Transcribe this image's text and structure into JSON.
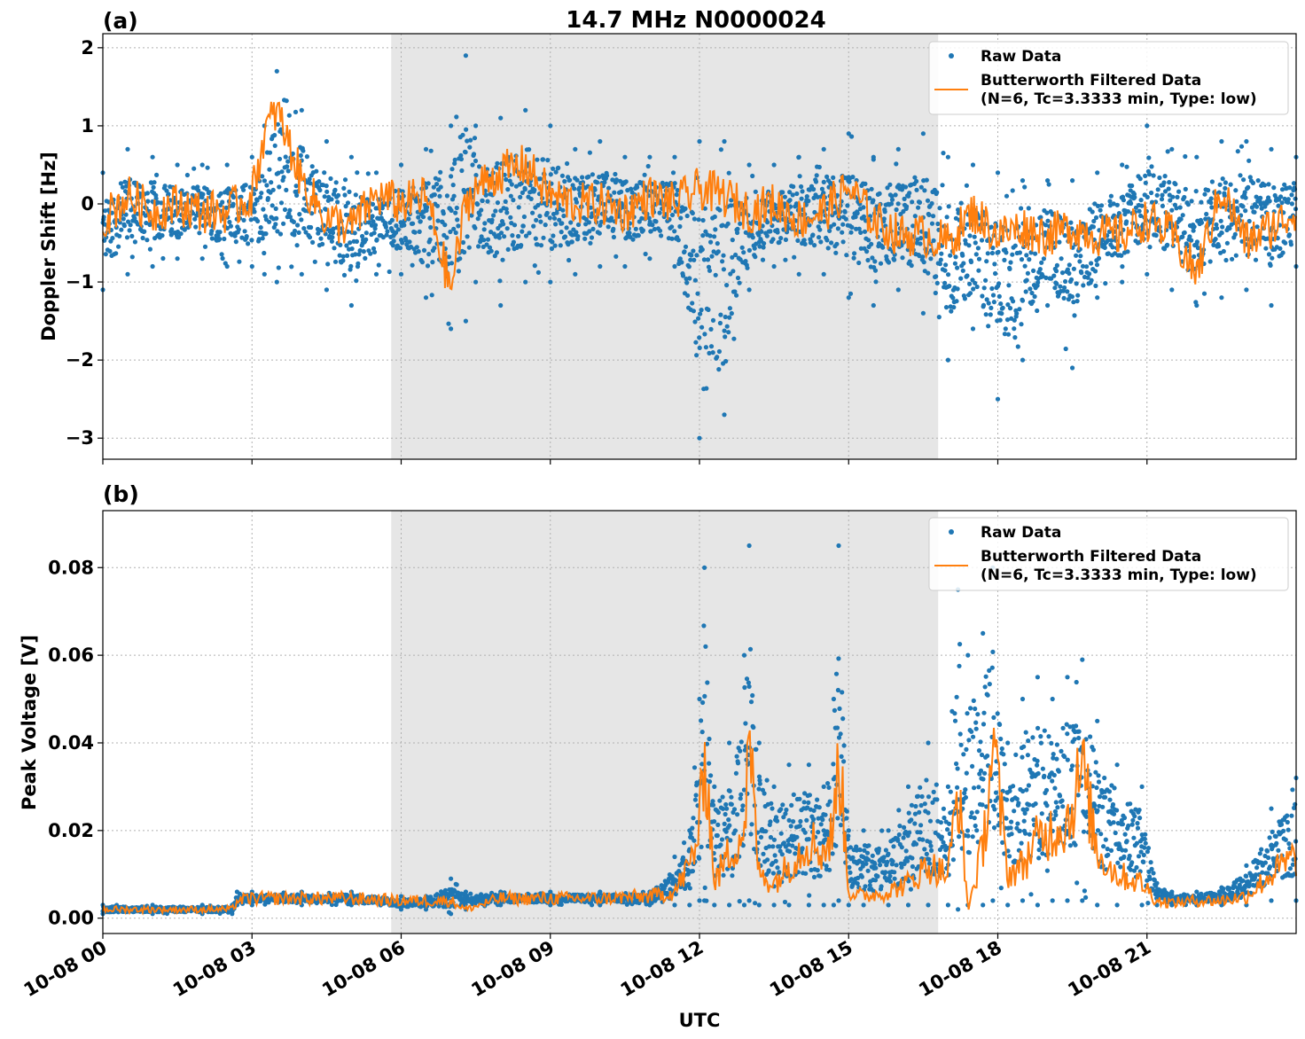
{
  "chart_data": [
    {
      "type": "scatter",
      "panel_label": "(a)",
      "title": "14.7 MHz N0000024",
      "xlabel": "",
      "ylabel": "Doppler Shift [Hz]",
      "xlim_hours": [
        0,
        24
      ],
      "ylim": [
        -3.27,
        2.18
      ],
      "yticks": [
        2,
        1,
        0,
        -1,
        -2,
        -3
      ],
      "ytick_labels": [
        "2",
        "1",
        "0",
        "−1",
        "−2",
        "−3"
      ],
      "grid": true,
      "legend_position": "top-right",
      "shaded_interval_hours": [
        5.8,
        16.8
      ],
      "series": [
        {
          "name": "Raw Data",
          "style": "points",
          "color": "#1f77b4",
          "x_hours": [
            0,
            0.5,
            1,
            1.5,
            2,
            2.5,
            3,
            3.25,
            3.5,
            4,
            4.5,
            5,
            5.5,
            6,
            6.5,
            7,
            7.3,
            7.5,
            8,
            8.5,
            9,
            9.5,
            10,
            10.5,
            11,
            11.5,
            12,
            12.5,
            13,
            13.5,
            14,
            14.5,
            15,
            15.5,
            16,
            16.5,
            17,
            17.5,
            18,
            18.5,
            19,
            19.5,
            20,
            20.5,
            21,
            21.5,
            22,
            22.5,
            23,
            23.5,
            24
          ],
          "y_upper": [
            0.4,
            0.7,
            0.6,
            0.5,
            0.5,
            0.5,
            0.6,
            1.0,
            1.7,
            1.2,
            0.8,
            0.6,
            0.4,
            0.5,
            0.7,
            1.0,
            1.9,
            1.0,
            1.1,
            1.2,
            1.0,
            0.7,
            0.8,
            0.6,
            0.6,
            0.6,
            0.8,
            0.8,
            0.5,
            0.5,
            0.6,
            0.7,
            0.9,
            0.6,
            0.7,
            0.9,
            0.6,
            0.5,
            0.4,
            0.3,
            0.3,
            0.3,
            0.4,
            0.5,
            1.0,
            0.7,
            0.6,
            0.8,
            0.8,
            0.7,
            0.6
          ],
          "y_lower": [
            -1.1,
            -0.9,
            -0.8,
            -0.7,
            -0.7,
            -0.8,
            -0.8,
            -0.9,
            -1.0,
            -0.9,
            -1.1,
            -1.3,
            -0.9,
            -0.9,
            -1.2,
            -1.6,
            -1.5,
            -1.0,
            -1.3,
            -1.0,
            -1.0,
            -0.9,
            -0.8,
            -0.8,
            -0.7,
            -0.8,
            -3.0,
            -2.7,
            -1.1,
            -0.8,
            -0.9,
            -0.9,
            -1.2,
            -1.3,
            -1.1,
            -1.4,
            -2.0,
            -1.6,
            -2.5,
            -2.0,
            -1.3,
            -2.1,
            -1.2,
            -1.0,
            -0.9,
            -1.1,
            -1.3,
            -1.2,
            -1.1,
            -1.3,
            -0.8
          ]
        },
        {
          "name": "Butterworth Filtered Data\n(N=6, Tc=3.3333 min, Type: low)",
          "style": "line",
          "color": "#ff7f0e",
          "x_hours": [
            0,
            0.5,
            1,
            1.5,
            2,
            2.5,
            3,
            3.25,
            3.5,
            4,
            4.5,
            5,
            5.5,
            6,
            6.5,
            7,
            7.3,
            7.5,
            8,
            8.5,
            9,
            9.5,
            10,
            10.5,
            11,
            11.5,
            12,
            12.5,
            13,
            13.5,
            14,
            14.5,
            15,
            15.5,
            16,
            16.5,
            17,
            17.5,
            18,
            18.5,
            19,
            19.5,
            20,
            20.5,
            21,
            21.5,
            22,
            22.5,
            23,
            23.5,
            24
          ],
          "values": [
            -0.2,
            0.1,
            -0.1,
            0.0,
            -0.1,
            -0.1,
            0.1,
            0.9,
            1.2,
            0.3,
            -0.2,
            -0.3,
            0.1,
            0.0,
            0.1,
            -1.1,
            0.0,
            0.2,
            0.4,
            0.5,
            0.1,
            0.0,
            0.0,
            -0.1,
            0.1,
            0.0,
            0.2,
            0.1,
            -0.1,
            0.0,
            -0.2,
            -0.1,
            0.2,
            -0.2,
            -0.4,
            -0.4,
            -0.5,
            -0.1,
            -0.4,
            -0.3,
            -0.4,
            -0.3,
            -0.4,
            -0.4,
            -0.2,
            -0.4,
            -0.9,
            0.2,
            -0.5,
            -0.3,
            -0.1
          ]
        }
      ]
    },
    {
      "type": "scatter",
      "panel_label": "(b)",
      "title": "",
      "xlabel": "UTC",
      "ylabel": "Peak Voltage [V]",
      "xlim_hours": [
        0,
        24
      ],
      "ylim": [
        -0.0035,
        0.093
      ],
      "yticks": [
        0.08,
        0.06,
        0.04,
        0.02,
        0.0
      ],
      "ytick_labels": [
        "0.08",
        "0.06",
        "0.04",
        "0.02",
        "0.00"
      ],
      "xticks_hours": [
        0,
        3,
        6,
        9,
        12,
        15,
        18,
        21
      ],
      "xtick_labels": [
        "10-08 00",
        "10-08 03",
        "10-08 06",
        "10-08 09",
        "10-08 12",
        "10-08 15",
        "10-08 18",
        "10-08 21"
      ],
      "grid": true,
      "legend_position": "top-right",
      "shaded_interval_hours": [
        5.8,
        16.8
      ],
      "series": [
        {
          "name": "Raw Data",
          "style": "points",
          "color": "#1f77b4",
          "x_hours": [
            0,
            1,
            2,
            2.6,
            2.7,
            3,
            4,
            5,
            6,
            6.5,
            7,
            7.3,
            8,
            9,
            10,
            11,
            11.5,
            11.8,
            12,
            12.1,
            12.3,
            12.6,
            12.9,
            13.0,
            13.2,
            13.5,
            13.8,
            14.2,
            14.5,
            14.7,
            14.8,
            15,
            15.3,
            15.8,
            16.2,
            16.6,
            17.0,
            17.2,
            17.4,
            17.7,
            17.9,
            18.2,
            18.5,
            18.8,
            19.1,
            19.4,
            19.7,
            20,
            20.4,
            20.9,
            21.2,
            21.5,
            22,
            22.5,
            23,
            23.5,
            24
          ],
          "y_upper": [
            0.003,
            0.003,
            0.003,
            0.003,
            0.006,
            0.006,
            0.006,
            0.006,
            0.005,
            0.005,
            0.009,
            0.006,
            0.006,
            0.006,
            0.006,
            0.006,
            0.014,
            0.02,
            0.05,
            0.08,
            0.03,
            0.04,
            0.06,
            0.085,
            0.04,
            0.03,
            0.035,
            0.035,
            0.03,
            0.05,
            0.085,
            0.02,
            0.02,
            0.02,
            0.03,
            0.04,
            0.03,
            0.075,
            0.06,
            0.065,
            0.08,
            0.04,
            0.05,
            0.055,
            0.05,
            0.055,
            0.059,
            0.045,
            0.035,
            0.03,
            0.008,
            0.006,
            0.006,
            0.007,
            0.012,
            0.025,
            0.032
          ],
          "y_lower": [
            0.001,
            0.001,
            0.001,
            0.001,
            0.003,
            0.003,
            0.003,
            0.003,
            0.002,
            0.002,
            0.001,
            0.002,
            0.003,
            0.003,
            0.003,
            0.003,
            0.003,
            0.003,
            0.004,
            0.004,
            0.003,
            0.003,
            0.003,
            0.004,
            0.003,
            0.003,
            0.003,
            0.003,
            0.003,
            0.003,
            0.004,
            0.003,
            0.003,
            0.003,
            0.003,
            0.003,
            0.003,
            0.002,
            0.003,
            0.003,
            0.004,
            0.003,
            0.004,
            0.003,
            0.004,
            0.004,
            0.004,
            0.003,
            0.003,
            0.003,
            0.003,
            0.003,
            0.003,
            0.003,
            0.003,
            0.004,
            0.004
          ]
        },
        {
          "name": "Butterworth Filtered Data\n(N=6, Tc=3.3333 min, Type: low)",
          "style": "line",
          "color": "#ff7f0e",
          "x_hours": [
            0,
            1,
            2,
            2.6,
            2.7,
            3,
            4,
            5,
            6,
            6.5,
            7,
            7.3,
            8,
            9,
            10,
            11,
            11.5,
            11.8,
            12,
            12.1,
            12.3,
            12.6,
            12.9,
            13.0,
            13.2,
            13.5,
            13.8,
            14.2,
            14.5,
            14.7,
            14.8,
            15,
            15.3,
            15.8,
            16.2,
            16.6,
            17.0,
            17.2,
            17.4,
            17.7,
            17.9,
            18.2,
            18.5,
            18.8,
            19.1,
            19.4,
            19.7,
            20,
            20.4,
            20.9,
            21.2,
            21.5,
            22,
            22.5,
            23,
            23.5,
            24
          ],
          "values": [
            0.002,
            0.002,
            0.002,
            0.002,
            0.004,
            0.0045,
            0.0045,
            0.0045,
            0.004,
            0.004,
            0.004,
            0.002,
            0.0045,
            0.0045,
            0.0045,
            0.005,
            0.006,
            0.012,
            0.02,
            0.04,
            0.008,
            0.015,
            0.02,
            0.04,
            0.01,
            0.008,
            0.012,
            0.018,
            0.015,
            0.02,
            0.039,
            0.006,
            0.005,
            0.006,
            0.008,
            0.012,
            0.01,
            0.03,
            0.002,
            0.016,
            0.04,
            0.01,
            0.012,
            0.018,
            0.02,
            0.022,
            0.034,
            0.015,
            0.01,
            0.008,
            0.004,
            0.0035,
            0.004,
            0.004,
            0.005,
            0.01,
            0.014
          ]
        }
      ]
    }
  ],
  "legend": {
    "raw_label": "Raw Data",
    "filtered_line1": "Butterworth Filtered Data",
    "filtered_line2": "(N=6, Tc=3.3333 min, Type: low)"
  },
  "colors": {
    "raw": "#1f77b4",
    "filtered": "#ff7f0e",
    "shade": "#e6e6e6"
  }
}
